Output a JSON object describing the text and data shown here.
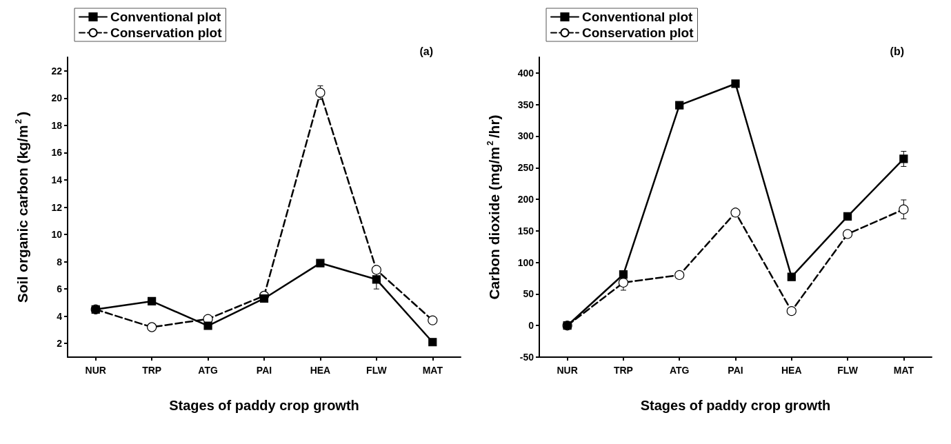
{
  "chart_data": [
    {
      "type": "line",
      "xlabel": "Stages of paddy crop growth",
      "ylabel": "Soil organic carbon (kg/m$^{2}$)",
      "annotations": [
        "(a)"
      ],
      "categories": [
        "NUR",
        "TRP",
        "ATG",
        "PAI",
        "HEA",
        "FLW",
        "MAT"
      ],
      "ylim": [
        1,
        23
      ],
      "yticks": [
        2,
        4,
        6,
        8,
        10,
        12,
        14,
        16,
        18,
        20,
        22
      ],
      "legend": "top left",
      "grid": false,
      "series": [
        {
          "name": "Conventional plot",
          "color": "#000000",
          "marker": "square",
          "line_style": "solid",
          "values": [
            4.5,
            5.1,
            3.3,
            5.3,
            7.9,
            6.7,
            2.1
          ],
          "errors": [
            null,
            null,
            null,
            null,
            null,
            0.7,
            null
          ]
        },
        {
          "name": "Conservation plot",
          "color": "#000000",
          "marker": "circle",
          "line_style": "dashed",
          "values": [
            4.5,
            3.2,
            3.8,
            5.5,
            20.4,
            7.4,
            3.7
          ],
          "errors": [
            null,
            null,
            null,
            null,
            0.5,
            null,
            null
          ]
        }
      ]
    },
    {
      "type": "line",
      "xlabel": "Stages of paddy crop growth",
      "ylabel": "Carbon dioxide (mg/m$^{2}$/hr)",
      "annotations": [
        "(b)"
      ],
      "categories": [
        "NUR",
        "TRP",
        "ATG",
        "PAI",
        "HEA",
        "FLW",
        "MAT"
      ],
      "ylim": [
        -50,
        425
      ],
      "yticks": [
        -50,
        0,
        50,
        100,
        150,
        200,
        250,
        300,
        350,
        400
      ],
      "legend": "top left",
      "grid": false,
      "series": [
        {
          "name": "Conventional plot",
          "color": "#000000",
          "marker": "square",
          "line_style": "solid",
          "values": [
            0,
            81,
            349,
            383,
            77,
            173,
            264
          ],
          "errors": [
            null,
            null,
            null,
            null,
            null,
            null,
            12
          ]
        },
        {
          "name": "Conservation plot",
          "color": "#000000",
          "marker": "circle",
          "line_style": "dashed",
          "values": [
            0,
            68,
            80,
            179,
            23,
            145,
            184
          ],
          "errors": [
            null,
            12,
            null,
            null,
            null,
            null,
            15
          ]
        }
      ]
    }
  ]
}
